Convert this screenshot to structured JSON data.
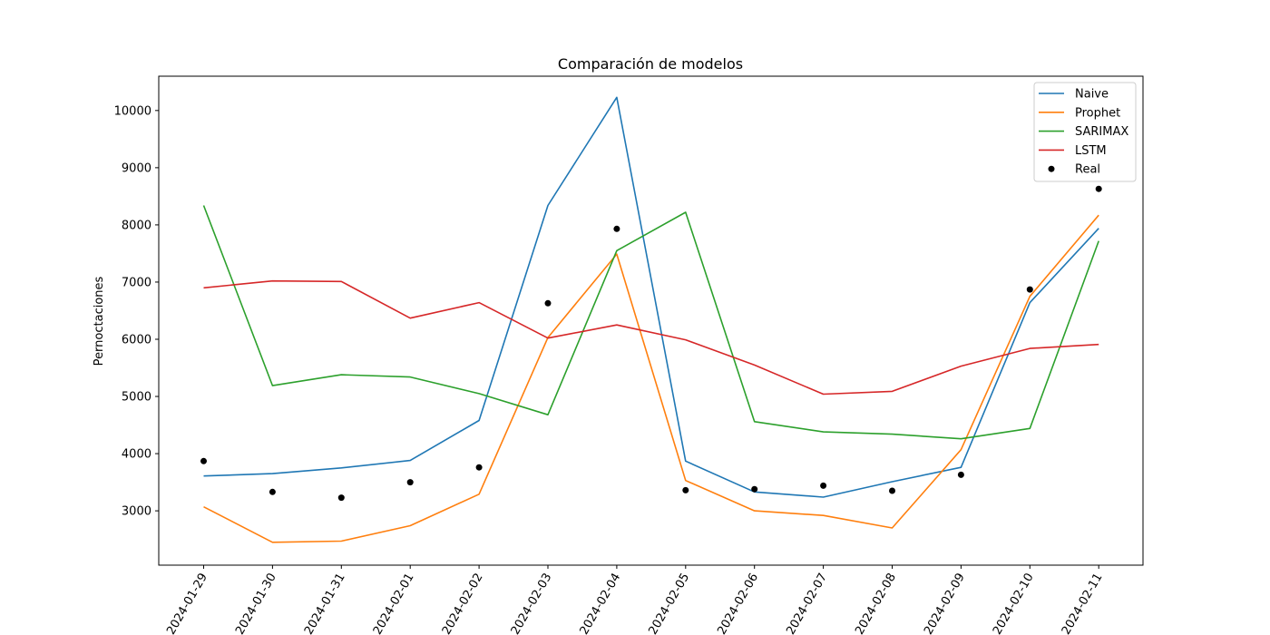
{
  "chart_data": {
    "type": "line",
    "title": "Comparación de modelos",
    "xlabel": "",
    "ylabel": "Pernoctaciones",
    "ylim": [
      2050,
      10600
    ],
    "yticks": [
      3000,
      4000,
      5000,
      6000,
      7000,
      8000,
      9000,
      10000
    ],
    "grid": false,
    "legend_position": "top-right",
    "x": [
      "2024-01-29",
      "2024-01-30",
      "2024-01-31",
      "2024-02-01",
      "2024-02-02",
      "2024-02-03",
      "2024-02-04",
      "2024-02-05",
      "2024-02-06",
      "2024-02-07",
      "2024-02-08",
      "2024-02-09",
      "2024-02-10",
      "2024-02-11"
    ],
    "series": [
      {
        "name": "Naive",
        "kind": "line",
        "color": "#1f77b4",
        "values": [
          3610,
          3650,
          3750,
          3880,
          4580,
          8340,
          10230,
          3870,
          3330,
          3240,
          3510,
          3760,
          6640,
          7940
        ]
      },
      {
        "name": "Prophet",
        "kind": "line",
        "color": "#ff7f0e",
        "values": [
          3070,
          2450,
          2470,
          2740,
          3290,
          6030,
          7490,
          3530,
          3000,
          2920,
          2700,
          4070,
          6750,
          8170
        ]
      },
      {
        "name": "SARIMAX",
        "kind": "line",
        "color": "#2ca02c",
        "values": [
          8340,
          5190,
          5380,
          5340,
          5050,
          4680,
          7550,
          8220,
          4560,
          4380,
          4340,
          4260,
          4440,
          7720
        ]
      },
      {
        "name": "LSTM",
        "kind": "line",
        "color": "#d62728",
        "values": [
          6900,
          7020,
          7010,
          6370,
          6640,
          6020,
          6250,
          5990,
          5550,
          5040,
          5090,
          5530,
          5840,
          5910
        ]
      },
      {
        "name": "Real",
        "kind": "scatter",
        "color": "#000000",
        "values": [
          3870,
          3330,
          3230,
          3500,
          3760,
          6630,
          7930,
          3360,
          3380,
          3440,
          3350,
          3630,
          6870,
          8630
        ]
      }
    ]
  }
}
